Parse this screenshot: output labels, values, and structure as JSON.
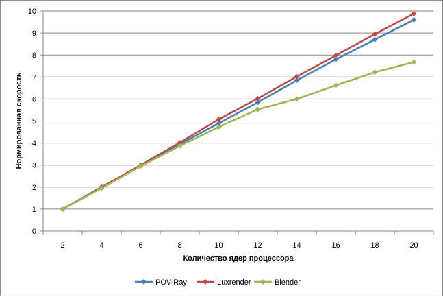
{
  "chart_data": {
    "type": "line",
    "title": "",
    "xlabel": "Количество  ядер процессора",
    "ylabel": "Нормированная  скорость",
    "x": [
      2,
      4,
      6,
      8,
      10,
      12,
      14,
      16,
      18,
      20
    ],
    "x_tick_labels": [
      "2",
      "4",
      "6",
      "8",
      "10",
      "12",
      "14",
      "16",
      "18",
      "20"
    ],
    "y_tick_labels": [
      "0",
      "1",
      "2",
      "3",
      "4",
      "5",
      "6",
      "7",
      "8",
      "9",
      "10"
    ],
    "ylim": [
      0,
      10
    ],
    "grid": "horizontal",
    "legend_position": "bottom",
    "series": [
      {
        "name": "POV-Ray",
        "color": "#4a7ebb",
        "values": [
          1.0,
          2.0,
          2.97,
          3.95,
          4.9,
          5.85,
          6.85,
          7.8,
          8.7,
          9.6
        ]
      },
      {
        "name": "Luxrender",
        "color": "#be4b48",
        "values": [
          1.0,
          2.0,
          3.0,
          4.02,
          5.08,
          6.02,
          7.02,
          7.98,
          8.95,
          9.88
        ]
      },
      {
        "name": "Blender",
        "color": "#98b954",
        "values": [
          1.0,
          1.95,
          2.95,
          3.87,
          4.73,
          5.53,
          6.0,
          6.62,
          7.22,
          7.68
        ]
      }
    ]
  }
}
